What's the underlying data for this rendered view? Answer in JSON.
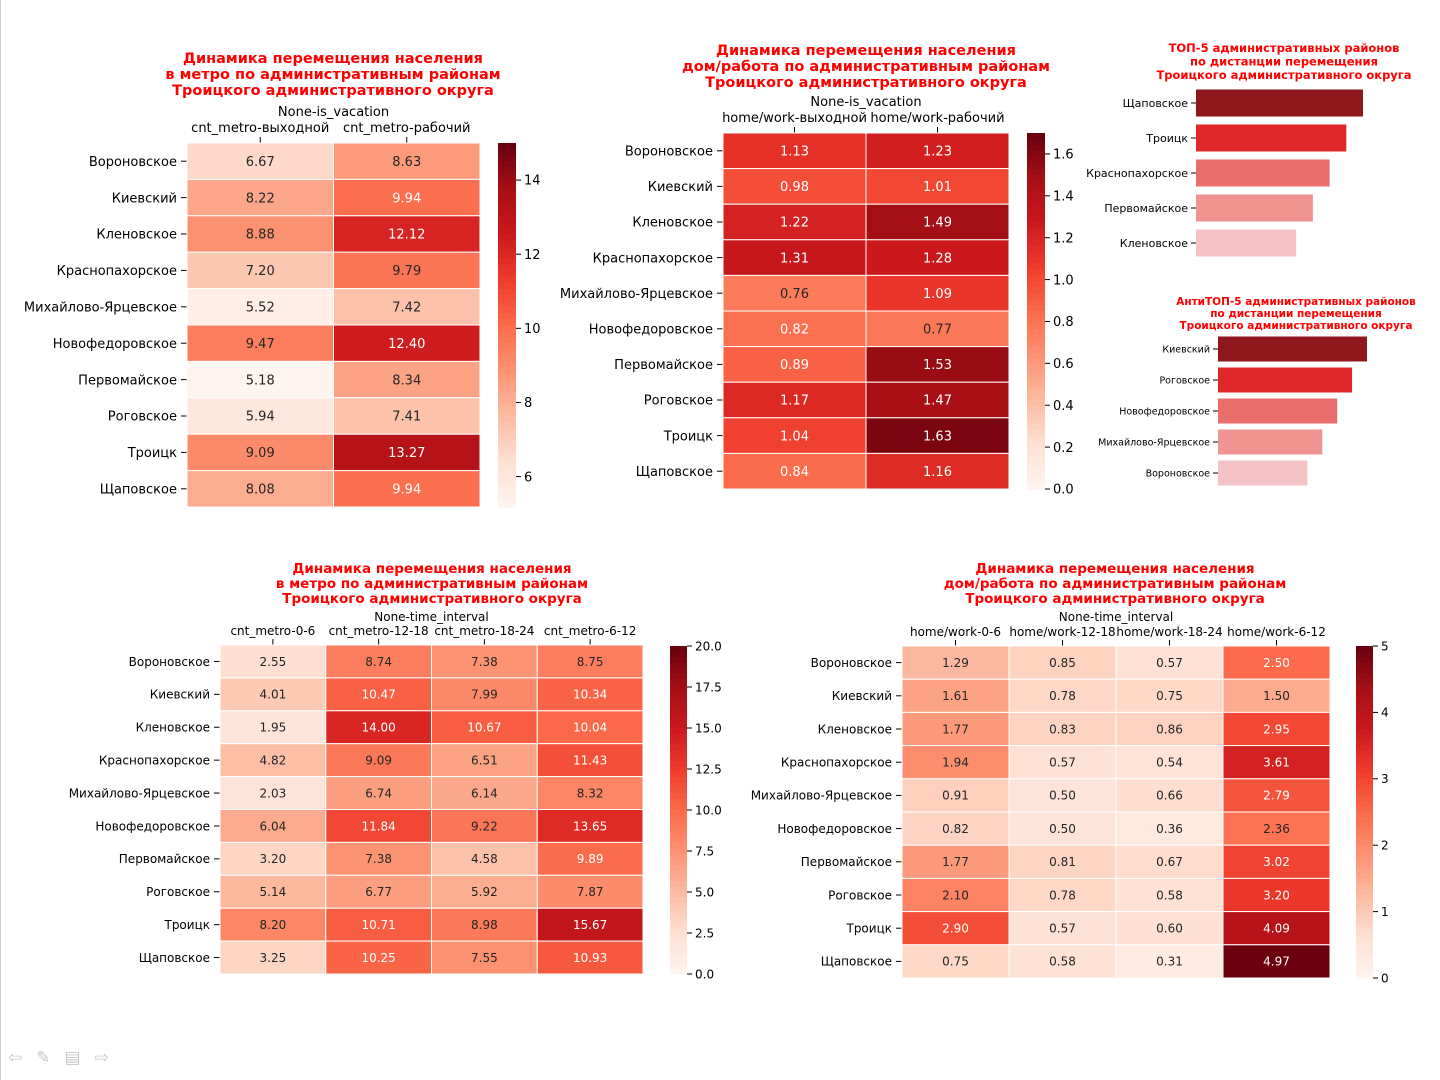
{
  "colors": {
    "title": "#ff0000",
    "cmap": "Reds"
  },
  "nav": {
    "prev": "⇦",
    "pen": "✎",
    "menu": "▤",
    "next": "⇨"
  },
  "chart_data": [
    {
      "type": "heatmap",
      "title": [
        "Динамика перемещения населения",
        "в метро по административным районам",
        "Троицкого административного округа"
      ],
      "group_label": "None-is_vacation",
      "columns": [
        "cnt_metro-выходной",
        "cnt_metro-рабочий"
      ],
      "rows": [
        "Вороновское",
        "Киевский",
        "Кленовское",
        "Краснопахорское",
        "Михайлово-Ярцевское",
        "Новофедоровское",
        "Первомайское",
        "Роговское",
        "Троицк",
        "Щаповское"
      ],
      "values": [
        [
          6.67,
          8.63
        ],
        [
          8.22,
          9.94
        ],
        [
          8.88,
          12.12
        ],
        [
          7.2,
          9.79
        ],
        [
          5.52,
          7.42
        ],
        [
          9.47,
          12.4
        ],
        [
          5.18,
          8.34
        ],
        [
          5.94,
          7.41
        ],
        [
          9.09,
          13.27
        ],
        [
          8.08,
          9.94
        ]
      ],
      "vmin": 5.18,
      "vmax": 15,
      "colorbar_ticks": [
        "6",
        "8",
        "10",
        "12",
        "14"
      ]
    },
    {
      "type": "heatmap",
      "title": [
        "Динамика перемещения населения",
        "дом/работа по административным районам",
        "Троицкого административного округа"
      ],
      "group_label": "None-is_vacation",
      "columns": [
        "home/work-выходной",
        "home/work-рабочий"
      ],
      "rows": [
        "Вороновское",
        "Киевский",
        "Кленовское",
        "Краснопахорское",
        "Михайлово-Ярцевское",
        "Новофедоровское",
        "Первомайское",
        "Роговское",
        "Троицк",
        "Щаповское"
      ],
      "values": [
        [
          1.13,
          1.23
        ],
        [
          0.98,
          1.01
        ],
        [
          1.22,
          1.49
        ],
        [
          1.31,
          1.28
        ],
        [
          0.76,
          1.09
        ],
        [
          0.82,
          0.77
        ],
        [
          0.89,
          1.53
        ],
        [
          1.17,
          1.47
        ],
        [
          1.04,
          1.63
        ],
        [
          0.84,
          1.16
        ]
      ],
      "vmin": 0.0,
      "vmax": 1.7,
      "colorbar_ticks": [
        "0.0",
        "0.2",
        "0.4",
        "0.6",
        "0.8",
        "1.0",
        "1.2",
        "1.4",
        "1.6"
      ]
    },
    {
      "type": "bar",
      "orientation": "horizontal",
      "title": [
        "ТОП-5 административных районов",
        "по дистанции перемещения",
        "Троицкого административного округа"
      ],
      "categories": [
        "Щаповское",
        "Троицк",
        "Краснопахорское",
        "Первомайское",
        "Кленовское"
      ],
      "values": [
        5,
        4.5,
        4,
        3.5,
        3
      ],
      "bar_colors": [
        "#8f161a",
        "#e0272a",
        "#e96d6b",
        "#f09491",
        "#f5c3c5"
      ]
    },
    {
      "type": "bar",
      "orientation": "horizontal",
      "title": [
        "АнтиТОП-5 административных районов",
        "по дистанции перемещения",
        "Троицкого административного округа"
      ],
      "categories": [
        "Киевский",
        "Роговское",
        "Новофедоровское",
        "Михайлово-Ярцевское",
        "Вороновское"
      ],
      "values": [
        5,
        4.5,
        4,
        3.5,
        3
      ],
      "bar_colors": [
        "#8f161a",
        "#e0272a",
        "#e96d6b",
        "#f09491",
        "#f5c3c5"
      ]
    },
    {
      "type": "heatmap",
      "title": [
        "Динамика перемещения населения",
        "в метро по административным районам",
        "Троицкого административного округа"
      ],
      "group_label": "None-time_interval",
      "columns": [
        "cnt_metro-0-6",
        "cnt_metro-12-18",
        "cnt_metro-18-24",
        "cnt_metro-6-12"
      ],
      "rows": [
        "Вороновское",
        "Киевский",
        "Кленовское",
        "Краснопахорское",
        "Михайлово-Ярцевское",
        "Новофедоровское",
        "Первомайское",
        "Роговское",
        "Троицк",
        "Щаповское"
      ],
      "values": [
        [
          2.55,
          8.74,
          7.38,
          8.75
        ],
        [
          4.01,
          10.47,
          7.99,
          10.34
        ],
        [
          1.95,
          14.0,
          10.67,
          10.04
        ],
        [
          4.82,
          9.09,
          6.51,
          11.43
        ],
        [
          2.03,
          6.74,
          6.14,
          8.32
        ],
        [
          6.04,
          11.84,
          9.22,
          13.65
        ],
        [
          3.2,
          7.38,
          4.58,
          9.89
        ],
        [
          5.14,
          6.77,
          5.92,
          7.87
        ],
        [
          8.2,
          10.71,
          8.98,
          15.67
        ],
        [
          3.25,
          10.25,
          7.55,
          10.93
        ]
      ],
      "vmin": 0.0,
      "vmax": 20.0,
      "colorbar_ticks": [
        "0.0",
        "2.5",
        "5.0",
        "7.5",
        "10.0",
        "12.5",
        "15.0",
        "17.5",
        "20.0"
      ]
    },
    {
      "type": "heatmap",
      "title": [
        "Динамика перемещения населения",
        "дом/работа по административным районам",
        "Троицкого административного округа"
      ],
      "group_label": "None-time_interval",
      "columns": [
        "home/work-0-6",
        "home/work-12-18",
        "home/work-18-24",
        "home/work-6-12"
      ],
      "rows": [
        "Вороновское",
        "Киевский",
        "Кленовское",
        "Краснопахорское",
        "Михайлово-Ярцевское",
        "Новофедоровское",
        "Первомайское",
        "Роговское",
        "Троицк",
        "Щаповское"
      ],
      "values": [
        [
          1.29,
          0.85,
          0.57,
          2.5
        ],
        [
          1.61,
          0.78,
          0.75,
          1.5
        ],
        [
          1.77,
          0.83,
          0.86,
          2.95
        ],
        [
          1.94,
          0.57,
          0.54,
          3.61
        ],
        [
          0.91,
          0.5,
          0.66,
          2.79
        ],
        [
          0.82,
          0.5,
          0.36,
          2.36
        ],
        [
          1.77,
          0.81,
          0.67,
          3.02
        ],
        [
          2.1,
          0.78,
          0.58,
          3.2
        ],
        [
          2.9,
          0.57,
          0.6,
          4.09
        ],
        [
          0.75,
          0.58,
          0.31,
          4.97
        ]
      ],
      "vmin": 0.0,
      "vmax": 5.0,
      "colorbar_ticks": [
        "0",
        "1",
        "2",
        "3",
        "4",
        "5"
      ]
    }
  ]
}
